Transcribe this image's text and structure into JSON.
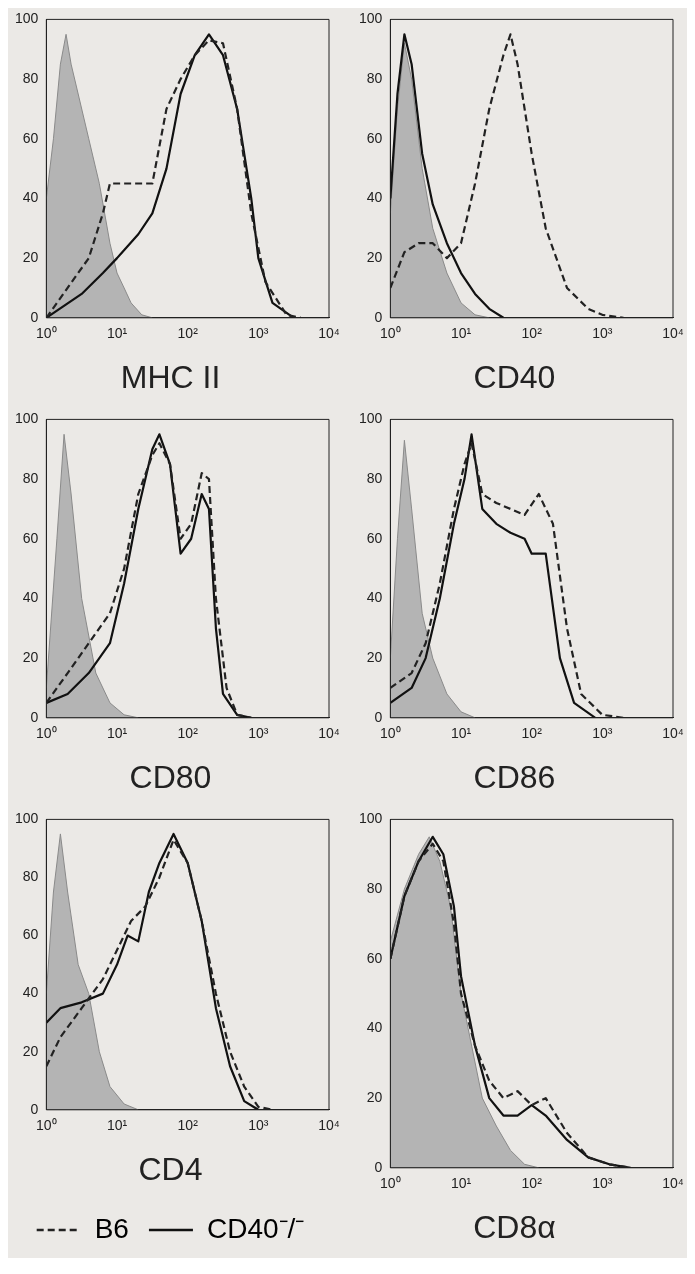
{
  "chart_data": [
    {
      "type": "line",
      "title": "MHC II",
      "log": "x",
      "grid": false,
      "marker": "none",
      "xlim": [
        1,
        10000
      ],
      "xticks": [
        {
          "value": 1,
          "label": "10⁰"
        },
        {
          "value": 10,
          "label": "10¹"
        },
        {
          "value": 100,
          "label": "10²"
        },
        {
          "value": 1000,
          "label": "10³"
        },
        {
          "value": 10000,
          "label": "10⁴"
        }
      ],
      "ylim": [
        0,
        100
      ],
      "yticks": [
        0,
        20,
        40,
        60,
        80,
        100
      ],
      "series": [
        {
          "type": "area",
          "color": "#b4b4b4",
          "x": [
            1,
            1.26,
            1.58,
            1.9,
            2.24,
            2.82,
            3.98,
            5.62,
            7.94,
            10,
            12.6,
            15.8,
            22.4,
            31.6
          ],
          "values": [
            40,
            60,
            85,
            95,
            85,
            75,
            60,
            45,
            25,
            15,
            10,
            5,
            1,
            0
          ]
        },
        {
          "color": "#222222",
          "line_style": "dashed",
          "x": [
            1,
            3.98,
            6.31,
            7.94,
            15.8,
            31.6,
            50.1,
            79.4,
            126,
            200,
            316,
            501,
            794,
            1259,
            2512,
            3981
          ],
          "values": [
            0,
            20,
            35,
            45,
            45,
            45,
            70,
            80,
            88,
            93,
            92,
            70,
            35,
            12,
            1,
            0
          ]
        },
        {
          "color": "#111111",
          "line_style": "solid",
          "x": [
            1,
            3.16,
            6.31,
            10,
            20,
            31.6,
            50.1,
            79.4,
            126,
            200,
            316,
            501,
            794,
            1000,
            1585,
            3162
          ],
          "values": [
            0,
            8,
            15,
            20,
            28,
            35,
            50,
            75,
            88,
            95,
            88,
            70,
            40,
            20,
            5,
            0
          ]
        }
      ]
    },
    {
      "type": "line",
      "title": "CD40",
      "log": "x",
      "grid": false,
      "marker": "none",
      "xlim": [
        1,
        10000
      ],
      "xticks": [
        {
          "value": 1,
          "label": "10⁰"
        },
        {
          "value": 10,
          "label": "10¹"
        },
        {
          "value": 100,
          "label": "10²"
        },
        {
          "value": 1000,
          "label": "10³"
        },
        {
          "value": 10000,
          "label": "10⁴"
        }
      ],
      "ylim": [
        0,
        100
      ],
      "yticks": [
        0,
        20,
        40,
        60,
        80,
        100
      ],
      "series": [
        {
          "type": "area",
          "color": "#b4b4b4",
          "x": [
            1,
            1.26,
            1.58,
            2,
            2.82,
            3.98,
            6.31,
            10,
            15.8,
            25.1
          ],
          "values": [
            35,
            70,
            92,
            80,
            50,
            30,
            15,
            5,
            1,
            0
          ]
        },
        {
          "color": "#222222",
          "line_style": "dashed",
          "x": [
            1,
            1.58,
            2.51,
            3.98,
            6.31,
            10,
            15.8,
            25.1,
            39.8,
            50.1,
            63.1,
            100,
            158,
            316,
            631,
            1000,
            1995
          ],
          "values": [
            10,
            22,
            25,
            25,
            20,
            25,
            45,
            70,
            88,
            95,
            85,
            55,
            30,
            10,
            3,
            1,
            0
          ]
        },
        {
          "color": "#111111",
          "line_style": "solid",
          "x": [
            1,
            1.26,
            1.58,
            2,
            2.82,
            3.98,
            6.31,
            10,
            15.8,
            25.1,
            39.8
          ],
          "values": [
            40,
            75,
            95,
            85,
            55,
            38,
            25,
            15,
            8,
            3,
            0
          ]
        }
      ]
    },
    {
      "type": "line",
      "title": "CD80",
      "log": "x",
      "grid": false,
      "marker": "none",
      "xlim": [
        1,
        10000
      ],
      "xticks": [
        {
          "value": 1,
          "label": "10⁰"
        },
        {
          "value": 10,
          "label": "10¹"
        },
        {
          "value": 100,
          "label": "10²"
        },
        {
          "value": 1000,
          "label": "10³"
        },
        {
          "value": 10000,
          "label": "10⁴"
        }
      ],
      "ylim": [
        0,
        100
      ],
      "yticks": [
        0,
        20,
        40,
        60,
        80,
        100
      ],
      "series": [
        {
          "type": "area",
          "color": "#b4b4b4",
          "x": [
            1,
            1.41,
            1.78,
            2.24,
            3.16,
            5.01,
            7.94,
            12.6,
            20
          ],
          "values": [
            10,
            60,
            95,
            75,
            40,
            15,
            5,
            1,
            0
          ]
        },
        {
          "color": "#222222",
          "line_style": "dashed",
          "x": [
            1,
            2,
            3.98,
            7.94,
            12.6,
            20,
            31.6,
            39.8,
            56.2,
            79.4,
            112,
            158,
            200,
            251,
            355,
            501,
            794
          ],
          "values": [
            5,
            15,
            25,
            35,
            50,
            75,
            88,
            92,
            85,
            60,
            65,
            82,
            80,
            40,
            10,
            1,
            0
          ]
        },
        {
          "color": "#111111",
          "line_style": "solid",
          "x": [
            1,
            2,
            3.98,
            7.94,
            12.6,
            20,
            31.6,
            39.8,
            56.2,
            79.4,
            112,
            158,
            200,
            251,
            316,
            501,
            794
          ],
          "values": [
            5,
            8,
            15,
            25,
            45,
            70,
            90,
            95,
            85,
            55,
            60,
            75,
            70,
            30,
            8,
            1,
            0
          ]
        }
      ]
    },
    {
      "type": "line",
      "title": "CD86",
      "log": "x",
      "grid": false,
      "marker": "none",
      "xlim": [
        1,
        10000
      ],
      "xticks": [
        {
          "value": 1,
          "label": "10⁰"
        },
        {
          "value": 10,
          "label": "10¹"
        },
        {
          "value": 100,
          "label": "10²"
        },
        {
          "value": 1000,
          "label": "10³"
        },
        {
          "value": 10000,
          "label": "10⁴"
        }
      ],
      "ylim": [
        0,
        100
      ],
      "yticks": [
        0,
        20,
        40,
        60,
        80,
        100
      ],
      "series": [
        {
          "type": "area",
          "color": "#b4b4b4",
          "x": [
            1,
            1.26,
            1.58,
            2,
            2.82,
            3.98,
            6.31,
            10,
            15.8
          ],
          "values": [
            20,
            60,
            93,
            70,
            35,
            20,
            8,
            2,
            0
          ]
        },
        {
          "color": "#222222",
          "line_style": "dashed",
          "x": [
            1,
            2,
            3.16,
            5.01,
            7.94,
            11.2,
            14.1,
            20,
            31.6,
            50.1,
            79.4,
            126,
            200,
            316,
            501,
            1000,
            1995
          ],
          "values": [
            10,
            15,
            25,
            45,
            70,
            85,
            92,
            75,
            72,
            70,
            68,
            75,
            65,
            30,
            8,
            1,
            0
          ]
        },
        {
          "color": "#111111",
          "line_style": "solid",
          "x": [
            1,
            2,
            3.16,
            5.01,
            7.94,
            11.2,
            14.1,
            20,
            31.6,
            50.1,
            79.4,
            100,
            158,
            251,
            398,
            794
          ],
          "values": [
            5,
            10,
            20,
            40,
            65,
            80,
            95,
            70,
            65,
            62,
            60,
            55,
            55,
            20,
            5,
            0
          ]
        }
      ]
    },
    {
      "type": "line",
      "title": "CD4",
      "legend": "bottom",
      "log": "x",
      "grid": false,
      "marker": "none",
      "xlim": [
        1,
        10000
      ],
      "xticks": [
        {
          "value": 1,
          "label": "10⁰"
        },
        {
          "value": 10,
          "label": "10¹"
        },
        {
          "value": 100,
          "label": "10²"
        },
        {
          "value": 1000,
          "label": "10³"
        },
        {
          "value": 10000,
          "label": "10⁴"
        }
      ],
      "ylim": [
        0,
        100
      ],
      "yticks": [
        0,
        20,
        40,
        60,
        80,
        100
      ],
      "series": [
        {
          "type": "area",
          "color": "#b4b4b4",
          "x": [
            1,
            1.26,
            1.58,
            2,
            2.82,
            3.98,
            5.62,
            7.94,
            12.6,
            20
          ],
          "values": [
            40,
            75,
            95,
            75,
            50,
            40,
            20,
            8,
            2,
            0
          ]
        },
        {
          "name": "B6",
          "color": "#222222",
          "line_style": "dashed",
          "x": [
            1,
            1.58,
            3.16,
            6.31,
            10,
            15.8,
            25.1,
            39.8,
            63.1,
            100,
            158,
            251,
            398,
            631,
            1000,
            1585
          ],
          "values": [
            15,
            25,
            35,
            45,
            55,
            65,
            70,
            80,
            93,
            85,
            65,
            40,
            20,
            8,
            1,
            0
          ]
        },
        {
          "name": "CD40⁻/⁻",
          "color": "#111111",
          "line_style": "solid",
          "x": [
            1,
            1.58,
            3.16,
            6.31,
            10,
            14.1,
            20,
            28.2,
            39.8,
            63.1,
            100,
            158,
            251,
            398,
            631,
            1000
          ],
          "values": [
            30,
            35,
            37,
            40,
            50,
            60,
            58,
            75,
            85,
            95,
            85,
            65,
            35,
            15,
            3,
            0
          ]
        }
      ]
    },
    {
      "type": "line",
      "title": "CD8α",
      "log": "x",
      "grid": false,
      "marker": "none",
      "xlim": [
        1,
        10000
      ],
      "xticks": [
        {
          "value": 1,
          "label": "10⁰"
        },
        {
          "value": 10,
          "label": "10¹"
        },
        {
          "value": 100,
          "label": "10²"
        },
        {
          "value": 1000,
          "label": "10³"
        },
        {
          "value": 10000,
          "label": "10⁴"
        }
      ],
      "ylim": [
        0,
        100
      ],
      "yticks": [
        0,
        20,
        40,
        60,
        80,
        100
      ],
      "series": [
        {
          "type": "area",
          "color": "#b4b4b4",
          "x": [
            1,
            1.58,
            2.51,
            3.55,
            5.01,
            7.08,
            10,
            12.6,
            20,
            31.6,
            50.1,
            79.4,
            126
          ],
          "values": [
            65,
            80,
            90,
            95,
            88,
            75,
            50,
            40,
            20,
            12,
            5,
            1,
            0
          ]
        },
        {
          "color": "#222222",
          "line_style": "dashed",
          "x": [
            1,
            1.58,
            2.51,
            3.98,
            5.62,
            7.94,
            10,
            15.8,
            25.1,
            39.8,
            63.1,
            100,
            158,
            316,
            631,
            1259,
            2512
          ],
          "values": [
            60,
            78,
            88,
            93,
            88,
            70,
            50,
            35,
            25,
            20,
            22,
            18,
            20,
            10,
            3,
            1,
            0
          ]
        },
        {
          "color": "#111111",
          "line_style": "solid",
          "x": [
            1,
            1.58,
            2.51,
            3.98,
            5.62,
            7.94,
            10,
            15.8,
            25.1,
            39.8,
            63.1,
            100,
            158,
            316,
            631,
            1259,
            2512
          ],
          "values": [
            60,
            78,
            88,
            95,
            90,
            75,
            55,
            35,
            20,
            15,
            15,
            18,
            15,
            8,
            3,
            1,
            0
          ]
        }
      ]
    }
  ]
}
